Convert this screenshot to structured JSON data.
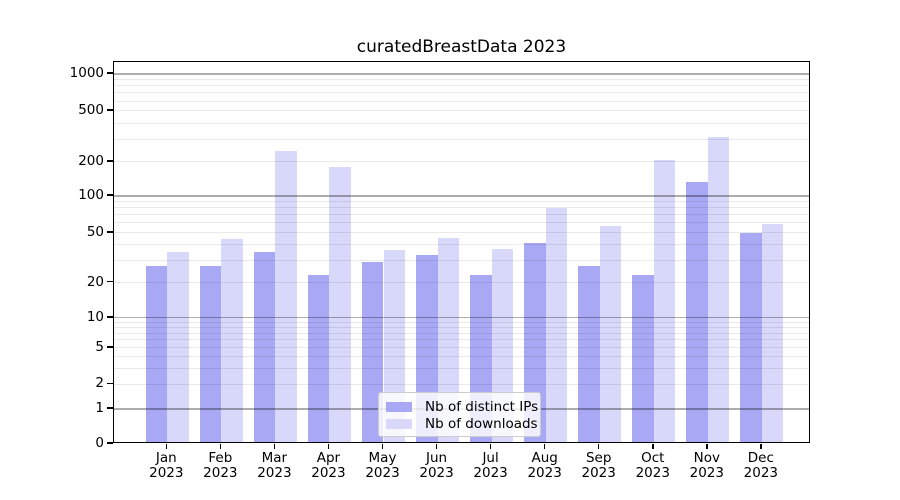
{
  "title": "curatedBreastData 2023",
  "colors": {
    "ips_bar": "#a8a8f5",
    "downloads_bar": "#d8d8fa",
    "axis": "#000000",
    "grid_major": "rgba(0,0,0,0.32)",
    "grid_minor": "rgba(0,0,0,0.085)",
    "legend_border": "#cccccc"
  },
  "legend": {
    "items": [
      {
        "label": "Nb of distinct IPs",
        "color_key": "ips_bar"
      },
      {
        "label": "Nb of downloads",
        "color_key": "downloads_bar"
      }
    ]
  },
  "chart_data": {
    "type": "bar",
    "title": "curatedBreastData 2023",
    "categories": [
      "Jan 2023",
      "Feb 2023",
      "Mar 2023",
      "Apr 2023",
      "May 2023",
      "Jun 2023",
      "Jul 2023",
      "Aug 2023",
      "Sep 2023",
      "Oct 2023",
      "Nov 2023",
      "Dec 2023"
    ],
    "months": [
      "Jan",
      "Feb",
      "Mar",
      "Apr",
      "May",
      "Jun",
      "Jul",
      "Aug",
      "Sep",
      "Oct",
      "Nov",
      "Dec"
    ],
    "year": "2023",
    "series": [
      {
        "name": "Nb of distinct IPs",
        "values": [
          26,
          26,
          34,
          22,
          28,
          32,
          22,
          40,
          26,
          22,
          128,
          48
        ]
      },
      {
        "name": "Nb of downloads",
        "values": [
          34,
          43,
          235,
          175,
          35,
          44,
          36,
          77,
          55,
          200,
          300,
          57
        ]
      }
    ],
    "xlabel": "",
    "ylabel": "",
    "y_axis": {
      "scale": "pseudo-log",
      "tick_values": [
        0,
        1,
        2,
        5,
        10,
        20,
        50,
        100,
        200,
        500,
        1000
      ],
      "major_gridlines": [
        1,
        10,
        100,
        1000
      ],
      "minor_gridlines": [
        2,
        3,
        4,
        5,
        6,
        7,
        8,
        9,
        20,
        30,
        40,
        50,
        60,
        70,
        80,
        90,
        200,
        300,
        400,
        500,
        600,
        700,
        800,
        900
      ],
      "range_top": 1270
    },
    "grid": true,
    "legend_position": "lower-center-inside"
  }
}
